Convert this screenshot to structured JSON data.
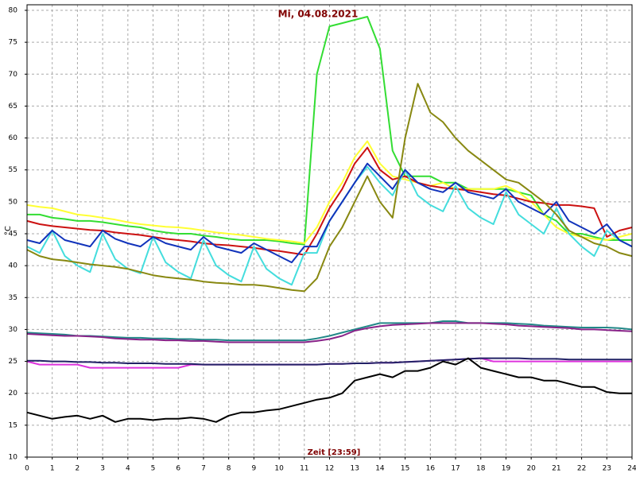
{
  "chart_data": {
    "type": "line",
    "title": "Mi, 04.08.2021",
    "x_label": "Zeit [23:59]",
    "y_label": "°C",
    "grid": true,
    "xlim": [
      0,
      24
    ],
    "xticks": [
      0,
      1,
      2,
      3,
      4,
      5,
      6,
      7,
      8,
      9,
      10,
      11,
      12,
      13,
      14,
      15,
      16,
      17,
      18,
      19,
      20,
      21,
      22,
      23,
      24
    ],
    "ylim": [
      10,
      80
    ],
    "yticks": [
      10,
      15,
      20,
      25,
      30,
      35,
      40,
      45,
      50,
      55,
      60,
      65,
      70,
      75,
      80
    ],
    "x": [
      0,
      0.5,
      1,
      1.5,
      2,
      2.5,
      3,
      3.5,
      4,
      4.5,
      5,
      5.5,
      6,
      6.5,
      7,
      7.5,
      8,
      8.5,
      9,
      9.5,
      10,
      10.5,
      11,
      11.5,
      12,
      12.5,
      13,
      13.5,
      14,
      14.5,
      15,
      15.5,
      16,
      16.5,
      17,
      17.5,
      18,
      18.5,
      19,
      19.5,
      20,
      20.5,
      21,
      21.5,
      22,
      22.5,
      23,
      23.5,
      24
    ],
    "series": [
      {
        "color": "#33dd33",
        "values": [
          48,
          48,
          47.5,
          47.3,
          47,
          47,
          46.8,
          46.5,
          46.2,
          46,
          45.5,
          45.2,
          45,
          45,
          44.7,
          44.5,
          44.2,
          44,
          44,
          44,
          43.8,
          43.5,
          43.3,
          70,
          77.5,
          78,
          78.5,
          79,
          74,
          58,
          54,
          54,
          54,
          53,
          53,
          52,
          52,
          52,
          52,
          51.5,
          51,
          48,
          47,
          45,
          45,
          44.5,
          44,
          44,
          44
        ]
      },
      {
        "color": "#ffff33",
        "values": [
          49.5,
          49.2,
          49,
          48.5,
          48,
          47.8,
          47.5,
          47.2,
          46.8,
          46.5,
          46.3,
          46.1,
          46,
          45.8,
          45.5,
          45.2,
          45,
          44.8,
          44.5,
          44.2,
          44,
          43.8,
          43.5,
          46,
          50,
          53,
          57,
          59.5,
          56,
          54,
          53.5,
          53,
          52.5,
          53,
          52,
          52,
          52,
          52,
          52.5,
          51.5,
          50,
          48,
          46,
          45,
          44.5,
          44.2,
          44,
          44.5,
          45
        ]
      },
      {
        "color": "#cc1111",
        "values": [
          47,
          46.5,
          46.2,
          46,
          45.8,
          45.6,
          45.5,
          45.2,
          45,
          44.8,
          44.5,
          44.2,
          44,
          43.8,
          43.5,
          43.3,
          43.2,
          43,
          42.8,
          42.5,
          42.3,
          42,
          41.7,
          45,
          49,
          52,
          56,
          58.5,
          55,
          53.5,
          54,
          53,
          52.5,
          52.2,
          52,
          51.8,
          51.5,
          51.2,
          51,
          50.5,
          50,
          49.8,
          49.5,
          49.5,
          49.3,
          49,
          44.5,
          45.5,
          46
        ]
      },
      {
        "color": "#44dddd",
        "values": [
          43,
          42,
          45.5,
          41.5,
          40,
          39,
          45,
          41,
          39.5,
          38.8,
          44.5,
          40.5,
          39,
          38,
          44,
          40,
          38.5,
          37.5,
          43,
          39.5,
          38,
          37,
          42,
          42,
          47,
          50,
          53,
          55.5,
          53,
          51,
          55,
          51,
          49.5,
          48.5,
          52.5,
          49,
          47.5,
          46.5,
          51.5,
          48,
          46.5,
          45,
          49,
          45,
          43,
          41.5,
          45.5,
          44,
          43
        ]
      },
      {
        "color": "#1133bb",
        "values": [
          44,
          43.5,
          45.5,
          44,
          43.5,
          43,
          45.5,
          44.2,
          43.5,
          43,
          44.5,
          43.5,
          43,
          42.5,
          44.5,
          43,
          42.5,
          42,
          43.5,
          42.5,
          41.5,
          40.5,
          43,
          43,
          47,
          50,
          53,
          56,
          54,
          52,
          55,
          53,
          52,
          51.5,
          53,
          51.5,
          51,
          50.5,
          52,
          50,
          49,
          48,
          50,
          47,
          46,
          45,
          46.5,
          44,
          43
        ]
      },
      {
        "color": "#888811",
        "values": [
          42.5,
          41.5,
          41,
          40.8,
          40.5,
          40.2,
          40,
          39.8,
          39.5,
          39,
          38.5,
          38.2,
          38,
          37.8,
          37.5,
          37.3,
          37.2,
          37,
          37,
          36.8,
          36.5,
          36.2,
          36,
          38,
          43,
          46,
          50,
          54,
          50,
          47.5,
          60,
          68.5,
          64,
          62.5,
          60,
          58,
          56.5,
          55,
          53.5,
          53,
          51.5,
          50,
          48,
          45.5,
          44.5,
          43.5,
          43,
          42,
          41.5
        ]
      },
      {
        "color": "#228888",
        "values": [
          29.5,
          29.4,
          29.3,
          29.2,
          29,
          29,
          28.9,
          28.8,
          28.7,
          28.7,
          28.6,
          28.6,
          28.5,
          28.5,
          28.4,
          28.4,
          28.3,
          28.3,
          28.3,
          28.3,
          28.3,
          28.3,
          28.3,
          28.6,
          29,
          29.5,
          30,
          30.5,
          31,
          31,
          31,
          31,
          31,
          31.3,
          31.3,
          31,
          31,
          31,
          31,
          30.9,
          30.8,
          30.6,
          30.5,
          30.4,
          30.3,
          30.3,
          30.3,
          30.2,
          30
        ]
      },
      {
        "color": "#882288",
        "values": [
          29.3,
          29.2,
          29.1,
          29,
          29,
          28.9,
          28.8,
          28.6,
          28.5,
          28.4,
          28.4,
          28.3,
          28.3,
          28.2,
          28.2,
          28.1,
          28,
          28,
          28,
          28,
          28,
          28,
          28,
          28.2,
          28.5,
          29,
          29.8,
          30.2,
          30.5,
          30.7,
          30.8,
          30.9,
          31,
          31,
          31,
          31,
          31,
          30.9,
          30.8,
          30.6,
          30.5,
          30.4,
          30.3,
          30.2,
          30,
          30,
          29.9,
          29.8,
          29.7
        ]
      },
      {
        "color": "#dd33dd",
        "values": [
          25,
          24.5,
          24.5,
          24.5,
          24.5,
          24,
          24,
          24,
          24,
          24,
          24,
          24,
          24,
          24.5,
          24.5,
          24.5,
          24.5,
          24.5,
          24.5,
          24.5,
          24.5,
          24.5,
          24.5,
          24.5,
          24.6,
          24.6,
          24.7,
          24.7,
          24.8,
          24.8,
          24.9,
          25,
          25.1,
          25.2,
          25.3,
          25.4,
          25.5,
          25,
          25,
          25,
          25,
          25,
          25,
          25,
          25,
          25,
          25,
          25,
          25
        ]
      },
      {
        "color": "#222266",
        "values": [
          25.1,
          25.1,
          25,
          25,
          24.9,
          24.9,
          24.8,
          24.8,
          24.7,
          24.7,
          24.7,
          24.6,
          24.6,
          24.6,
          24.5,
          24.5,
          24.5,
          24.5,
          24.5,
          24.5,
          24.5,
          24.5,
          24.5,
          24.5,
          24.6,
          24.6,
          24.7,
          24.7,
          24.8,
          24.8,
          24.9,
          25,
          25.1,
          25.2,
          25.3,
          25.4,
          25.5,
          25.5,
          25.5,
          25.5,
          25.4,
          25.4,
          25.4,
          25.3,
          25.3,
          25.3,
          25.3,
          25.3,
          25.3
        ]
      },
      {
        "color": "#000000",
        "values": [
          17,
          16.5,
          16,
          16.3,
          16.5,
          16,
          16.5,
          15.5,
          16,
          16,
          15.8,
          16,
          16,
          16.2,
          16,
          15.5,
          16.5,
          17,
          17,
          17.3,
          17.5,
          18,
          18.5,
          19,
          19.3,
          20,
          22,
          22.5,
          23,
          22.5,
          23.5,
          23.5,
          24,
          25,
          24.5,
          25.5,
          24,
          23.5,
          23,
          22.5,
          22.5,
          22,
          22,
          21.5,
          21,
          21,
          20.2,
          20,
          20
        ]
      }
    ]
  }
}
